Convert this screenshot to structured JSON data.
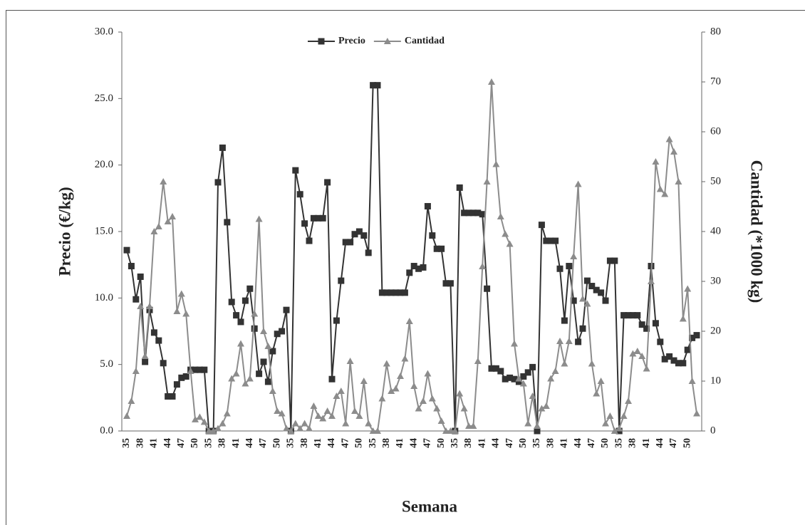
{
  "chart_data": {
    "type": "line",
    "x_label": "Semana",
    "y_label": "Precio (€/kg)",
    "y2_label": "Cantidad (*1000 kg)",
    "categories": [
      "35",
      null,
      null,
      "38",
      null,
      null,
      "41",
      null,
      null,
      "44",
      null,
      null,
      "47",
      null,
      null,
      "50",
      null,
      null,
      "35",
      null,
      null,
      "38",
      null,
      null,
      "41",
      null,
      null,
      "44",
      null,
      null,
      "47",
      null,
      null,
      "50",
      null,
      null,
      "35",
      null,
      null,
      "38",
      null,
      null,
      "41",
      null,
      null,
      "44",
      null,
      null,
      "47",
      null,
      null,
      "50",
      null,
      null,
      "35",
      null,
      null,
      "38",
      null,
      null,
      "41",
      null,
      null,
      "44",
      null,
      null,
      "47",
      null,
      null,
      "50",
      null,
      null,
      "35",
      null,
      null,
      "38",
      null,
      null,
      "41",
      null,
      null,
      "44",
      null,
      null,
      "47",
      null,
      null,
      "50",
      null,
      null,
      "35",
      null,
      null,
      "38",
      null,
      null,
      "41",
      null,
      null,
      "44",
      null,
      null,
      "47",
      null,
      null,
      "50",
      null,
      null,
      "35",
      null,
      null,
      "38",
      null,
      null,
      "41",
      null,
      null,
      "44",
      null,
      null,
      "47",
      null,
      null,
      "50",
      null,
      null
    ],
    "series": [
      {
        "name": "Precio",
        "color": "#333333",
        "marker": "square",
        "values": [
          13.6,
          12.4,
          9.9,
          11.6,
          5.2,
          9.1,
          7.4,
          6.8,
          5.1,
          2.6,
          2.6,
          3.5,
          4.0,
          4.1,
          4.6,
          4.6,
          4.6,
          4.6,
          0,
          0,
          18.7,
          21.3,
          15.7,
          9.7,
          8.7,
          8.2,
          9.8,
          10.7,
          7.7,
          4.3,
          5.2,
          3.7,
          6.0,
          7.3,
          7.5,
          9.1,
          0,
          19.6,
          17.8,
          15.6,
          14.3,
          16.0,
          16.0,
          16.0,
          18.7,
          3.9,
          8.3,
          11.3,
          14.2,
          14.2,
          14.8,
          15.0,
          14.7,
          13.4,
          26.0,
          26.0,
          10.4,
          10.4,
          10.4,
          10.4,
          10.4,
          10.4,
          11.9,
          12.4,
          12.2,
          12.3,
          16.9,
          14.7,
          13.7,
          13.7,
          11.1,
          11.1,
          0,
          18.3,
          16.4,
          16.4,
          16.4,
          16.4,
          16.3,
          10.7,
          4.7,
          4.7,
          4.5,
          3.9,
          4.0,
          3.9,
          3.7,
          4.1,
          4.4,
          4.8,
          0,
          15.5,
          14.3,
          14.3,
          14.3,
          12.2,
          8.3,
          12.4,
          9.8,
          6.7,
          7.7,
          11.3,
          10.9,
          10.6,
          10.4,
          9.8,
          12.8,
          12.8,
          0,
          8.7,
          8.7,
          8.7,
          8.7,
          8.0,
          7.7,
          12.4,
          8.1,
          6.7,
          5.4,
          5.6,
          5.3,
          5.1,
          5.1,
          6.1,
          7.0,
          7.2
        ]
      },
      {
        "name": "Cantidad",
        "color": "#8c8c8c",
        "marker": "triangle",
        "axis": "y2",
        "values": [
          3,
          6,
          12,
          25,
          15,
          25,
          40,
          41,
          50,
          42,
          43,
          24,
          27.5,
          23.5,
          12,
          2.3,
          2.8,
          1.8,
          0,
          0,
          0.5,
          1.5,
          3.5,
          10.5,
          11.5,
          17.5,
          9.5,
          10.5,
          23.5,
          42.5,
          20,
          17,
          8,
          4,
          3.5,
          0.5,
          0,
          1.5,
          0.5,
          1.5,
          0.5,
          5,
          3,
          2.5,
          4,
          3,
          7,
          8,
          1.5,
          14,
          4,
          3,
          10,
          1.5,
          0,
          0,
          6.5,
          13.5,
          8,
          8.5,
          11,
          14.5,
          22,
          9,
          4.5,
          6,
          11.5,
          6.5,
          4.5,
          2,
          0,
          0,
          0,
          7.5,
          4.5,
          1,
          1,
          14,
          33,
          50,
          70,
          53.5,
          43,
          39.5,
          37.5,
          17.5,
          10.5,
          9.5,
          1.5,
          7,
          1,
          4.5,
          5,
          10.5,
          12,
          18,
          13.5,
          18,
          35,
          49.5,
          26.5,
          25.5,
          13.5,
          7.5,
          10,
          1.5,
          3,
          0,
          0.5,
          3,
          6,
          15.5,
          16,
          15,
          12.5,
          30,
          54,
          48.5,
          47.5,
          58.5,
          56,
          50,
          22.5,
          28.5,
          10,
          3.5
        ]
      }
    ],
    "ylim": [
      0,
      30
    ],
    "yticks": [
      {
        "value": 0,
        "label": "0.0"
      },
      {
        "value": 5,
        "label": "5.0"
      },
      {
        "value": 10,
        "label": "10.0"
      },
      {
        "value": 15,
        "label": "15.0"
      },
      {
        "value": 20,
        "label": "20.0"
      },
      {
        "value": 25,
        "label": "25.0"
      },
      {
        "value": 30,
        "label": "30.0"
      }
    ],
    "y2lim": [
      0,
      80
    ],
    "y2ticks": [
      0,
      10,
      20,
      30,
      40,
      50,
      60,
      70,
      80
    ],
    "legend": "top"
  }
}
